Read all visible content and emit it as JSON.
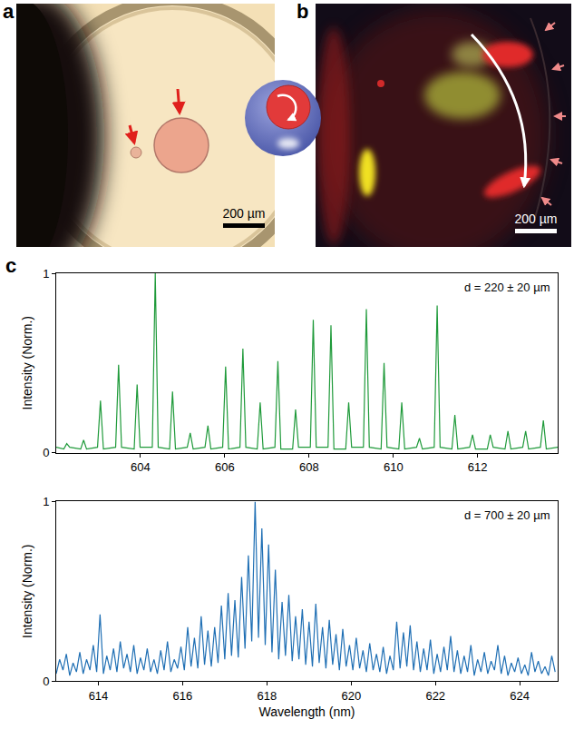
{
  "panel_a": {
    "letter": "a",
    "scale_bar": "200 µm"
  },
  "panel_b": {
    "letter": "b",
    "scale_bar": "200 µm"
  },
  "panel_c": {
    "letter": "c"
  },
  "chart_data": [
    {
      "type": "line",
      "annotation": "d = 220 ± 20 µm",
      "y_label": "Intensity (Norm.)",
      "color": "#1f9a3a",
      "grid": false,
      "xlim": [
        602,
        613.9
      ],
      "xticks": [
        604,
        606,
        608,
        610,
        612
      ],
      "ylim": [
        0,
        1
      ],
      "yticks": [
        0,
        1
      ],
      "x": [
        602.0,
        602.18,
        602.25,
        602.32,
        602.58,
        602.65,
        602.72,
        602.98,
        603.05,
        603.12,
        603.41,
        603.48,
        603.55,
        603.85,
        603.92,
        603.99,
        604.28,
        604.35,
        604.42,
        604.69,
        604.76,
        604.83,
        605.11,
        605.18,
        605.25,
        605.53,
        605.6,
        605.67,
        605.95,
        606.02,
        606.09,
        606.36,
        606.43,
        606.5,
        606.77,
        606.84,
        606.91,
        607.19,
        607.26,
        607.33,
        607.61,
        607.68,
        607.75,
        608.03,
        608.1,
        608.17,
        608.45,
        608.52,
        608.59,
        608.87,
        608.94,
        609.01,
        609.29,
        609.36,
        609.43,
        609.71,
        609.78,
        609.85,
        610.13,
        610.2,
        610.27,
        610.55,
        610.62,
        610.69,
        610.97,
        611.04,
        611.11,
        611.39,
        611.46,
        611.53,
        611.81,
        611.88,
        611.95,
        612.23,
        612.3,
        612.37,
        612.65,
        612.72,
        612.79,
        613.07,
        613.14,
        613.21,
        613.49,
        613.56,
        613.63,
        613.9
      ],
      "values": [
        0.03,
        0.02,
        0.05,
        0.03,
        0.02,
        0.07,
        0.02,
        0.03,
        0.29,
        0.02,
        0.03,
        0.49,
        0.03,
        0.02,
        0.38,
        0.03,
        0.03,
        1.0,
        0.03,
        0.02,
        0.34,
        0.02,
        0.03,
        0.11,
        0.02,
        0.03,
        0.15,
        0.02,
        0.03,
        0.48,
        0.02,
        0.03,
        0.58,
        0.03,
        0.02,
        0.28,
        0.02,
        0.03,
        0.51,
        0.02,
        0.02,
        0.24,
        0.03,
        0.03,
        0.74,
        0.03,
        0.03,
        0.71,
        0.02,
        0.02,
        0.28,
        0.03,
        0.03,
        0.8,
        0.03,
        0.02,
        0.5,
        0.03,
        0.02,
        0.28,
        0.02,
        0.03,
        0.08,
        0.02,
        0.03,
        0.82,
        0.03,
        0.02,
        0.21,
        0.02,
        0.03,
        0.1,
        0.02,
        0.02,
        0.1,
        0.03,
        0.02,
        0.12,
        0.02,
        0.03,
        0.12,
        0.02,
        0.03,
        0.18,
        0.02,
        0.03
      ]
    },
    {
      "type": "line",
      "annotation": "d = 700 ± 20 µm",
      "x_label": "Wavelength (nm)",
      "y_label": "Intensity (Norm.)",
      "color": "#1f6fb4",
      "grid": false,
      "xlim": [
        613,
        624.9
      ],
      "xticks": [
        614,
        616,
        618,
        620,
        622,
        624
      ],
      "ylim": [
        0,
        1
      ],
      "yticks": [
        0,
        1
      ],
      "x": [
        613.0,
        613.08,
        613.16,
        613.24,
        613.32,
        613.4,
        613.48,
        613.56,
        613.64,
        613.72,
        613.8,
        613.88,
        613.96,
        614.04,
        614.12,
        614.2,
        614.28,
        614.36,
        614.44,
        614.52,
        614.6,
        614.68,
        614.76,
        614.84,
        614.92,
        615.0,
        615.08,
        615.16,
        615.24,
        615.32,
        615.4,
        615.48,
        615.56,
        615.64,
        615.72,
        615.8,
        615.88,
        615.96,
        616.04,
        616.12,
        616.2,
        616.28,
        616.36,
        616.44,
        616.52,
        616.6,
        616.68,
        616.76,
        616.84,
        616.92,
        617.0,
        617.08,
        617.16,
        617.24,
        617.32,
        617.4,
        617.48,
        617.56,
        617.64,
        617.72,
        617.8,
        617.88,
        617.96,
        618.04,
        618.12,
        618.2,
        618.28,
        618.36,
        618.44,
        618.52,
        618.6,
        618.68,
        618.76,
        618.84,
        618.92,
        619.0,
        619.08,
        619.16,
        619.24,
        619.32,
        619.4,
        619.48,
        619.56,
        619.64,
        619.72,
        619.8,
        619.88,
        619.96,
        620.04,
        620.12,
        620.2,
        620.28,
        620.36,
        620.44,
        620.52,
        620.6,
        620.68,
        620.76,
        620.84,
        620.92,
        621.0,
        621.08,
        621.16,
        621.24,
        621.32,
        621.4,
        621.48,
        621.56,
        621.64,
        621.72,
        621.8,
        621.88,
        621.96,
        622.04,
        622.12,
        622.2,
        622.28,
        622.36,
        622.44,
        622.52,
        622.6,
        622.68,
        622.76,
        622.84,
        622.92,
        623.0,
        623.08,
        623.16,
        623.24,
        623.32,
        623.4,
        623.48,
        623.56,
        623.64,
        623.72,
        623.8,
        623.88,
        623.96,
        624.04,
        624.12,
        624.2,
        624.28,
        624.36,
        624.44,
        624.52,
        624.6,
        624.68,
        624.76,
        624.84
      ],
      "values": [
        0.04,
        0.12,
        0.06,
        0.15,
        0.03,
        0.1,
        0.05,
        0.16,
        0.04,
        0.12,
        0.06,
        0.2,
        0.05,
        0.37,
        0.04,
        0.14,
        0.06,
        0.18,
        0.05,
        0.22,
        0.07,
        0.15,
        0.05,
        0.2,
        0.04,
        0.13,
        0.06,
        0.18,
        0.05,
        0.12,
        0.04,
        0.17,
        0.06,
        0.22,
        0.05,
        0.12,
        0.07,
        0.19,
        0.06,
        0.3,
        0.08,
        0.24,
        0.07,
        0.36,
        0.09,
        0.28,
        0.08,
        0.3,
        0.1,
        0.42,
        0.12,
        0.49,
        0.14,
        0.45,
        0.13,
        0.58,
        0.18,
        0.7,
        0.22,
        1.0,
        0.24,
        0.85,
        0.2,
        0.76,
        0.16,
        0.62,
        0.12,
        0.44,
        0.14,
        0.48,
        0.11,
        0.36,
        0.12,
        0.4,
        0.09,
        0.33,
        0.08,
        0.43,
        0.1,
        0.3,
        0.07,
        0.34,
        0.09,
        0.26,
        0.06,
        0.29,
        0.08,
        0.2,
        0.06,
        0.24,
        0.07,
        0.17,
        0.05,
        0.21,
        0.06,
        0.15,
        0.05,
        0.19,
        0.04,
        0.14,
        0.06,
        0.33,
        0.07,
        0.27,
        0.08,
        0.31,
        0.06,
        0.22,
        0.05,
        0.18,
        0.06,
        0.23,
        0.04,
        0.15,
        0.05,
        0.19,
        0.06,
        0.25,
        0.05,
        0.17,
        0.04,
        0.14,
        0.05,
        0.2,
        0.03,
        0.12,
        0.05,
        0.16,
        0.04,
        0.11,
        0.06,
        0.2,
        0.04,
        0.14,
        0.03,
        0.1,
        0.05,
        0.13,
        0.04,
        0.09,
        0.03,
        0.16,
        0.05,
        0.11,
        0.04,
        0.08,
        0.03,
        0.14,
        0.05
      ]
    }
  ]
}
